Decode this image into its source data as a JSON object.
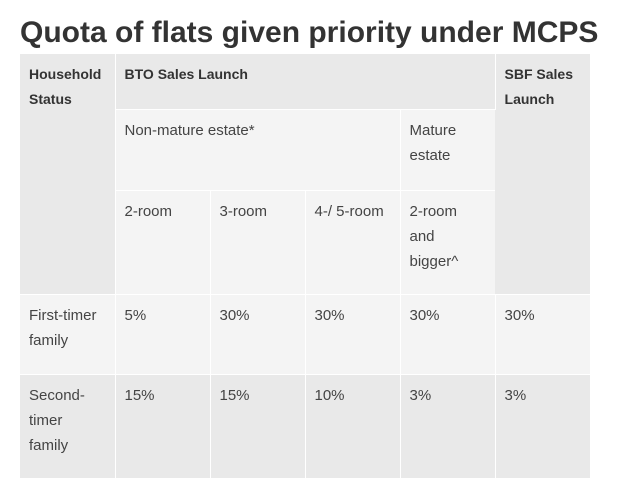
{
  "title": "Quota of flats given priority under MCPS",
  "table": {
    "headers": {
      "household_status": "Household Status",
      "bto_sales_launch": "BTO Sales Launch",
      "sbf_sales_launch": "SBF Sales Launch",
      "non_mature_estate": "Non-mature estate*",
      "mature_estate": "Mature estate",
      "two_room": "2-room",
      "three_room": "3-room",
      "four_five_room": "4-/ 5-room",
      "two_room_bigger": "2-room and bigger^"
    },
    "rows": [
      {
        "status": "First-timer family",
        "non_mature_2room": "5%",
        "non_mature_3room": "30%",
        "non_mature_4_5room": "30%",
        "mature_2room_bigger": "30%",
        "sbf": "30%"
      },
      {
        "status": "Second-timer family",
        "non_mature_2room": "15%",
        "non_mature_3room": "15%",
        "non_mature_4_5room": "10%",
        "mature_2room_bigger": "3%",
        "sbf": "3%"
      }
    ]
  }
}
